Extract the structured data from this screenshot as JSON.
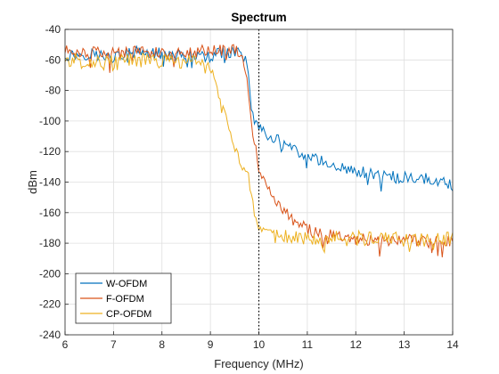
{
  "chart_data": {
    "type": "line",
    "title": "Spectrum",
    "xlabel": "Frequency (MHz)",
    "ylabel": "dBm",
    "xlim": [
      6,
      14
    ],
    "ylim": [
      -240,
      -40
    ],
    "xticks": [
      6,
      7,
      8,
      9,
      10,
      11,
      12,
      13,
      14
    ],
    "yticks": [
      -40,
      -60,
      -80,
      -100,
      -120,
      -140,
      -160,
      -180,
      -200,
      -220,
      -240
    ],
    "grid": true,
    "legend_position": "bottom-left",
    "vline": {
      "x": 10,
      "style": "dotted",
      "color": "#000000"
    },
    "series": [
      {
        "name": "W-OFDM",
        "color": "#0072BD",
        "x": [
          6.0,
          6.5,
          7.0,
          7.5,
          8.0,
          8.5,
          9.0,
          9.3,
          9.5,
          9.6,
          9.7,
          9.75,
          9.8,
          9.85,
          9.9,
          10.0,
          10.1,
          10.3,
          10.5,
          10.75,
          11.0,
          11.5,
          12.0,
          12.5,
          13.0,
          13.5,
          14.0
        ],
        "y": [
          -57,
          -56,
          -58,
          -55,
          -56,
          -57,
          -58,
          -55,
          -54,
          -56,
          -57,
          -66,
          -76,
          -92,
          -98,
          -103,
          -107,
          -111,
          -115,
          -120,
          -124,
          -128,
          -133,
          -136,
          -137,
          -138,
          -142
        ],
        "noise": 4
      },
      {
        "name": "F-OFDM",
        "color": "#D95319",
        "x": [
          6.0,
          6.5,
          7.0,
          7.5,
          8.0,
          8.5,
          9.0,
          9.3,
          9.5,
          9.6,
          9.65,
          9.7,
          9.75,
          9.8,
          9.85,
          9.9,
          9.95,
          10.0,
          10.1,
          10.25,
          10.5,
          10.75,
          11.0,
          11.25,
          11.5,
          12.0,
          12.5,
          13.0,
          13.5,
          14.0
        ],
        "y": [
          -54,
          -55,
          -56,
          -54,
          -55,
          -56,
          -53,
          -54,
          -53,
          -54,
          -58,
          -66,
          -74,
          -88,
          -100,
          -112,
          -122,
          -130,
          -138,
          -148,
          -158,
          -166,
          -171,
          -174,
          -175,
          -177,
          -178,
          -178,
          -179,
          -179
        ],
        "noise": 4
      },
      {
        "name": "CP-OFDM",
        "color": "#EDB120",
        "x": [
          6.0,
          6.5,
          7.0,
          7.5,
          8.0,
          8.5,
          8.8,
          9.0,
          9.1,
          9.2,
          9.3,
          9.4,
          9.5,
          9.6,
          9.7,
          9.8,
          9.9,
          9.95,
          10.0,
          10.25,
          10.5,
          11.0,
          11.5,
          12.0,
          12.5,
          13.0,
          13.5,
          14.0
        ],
        "y": [
          -60,
          -61,
          -62,
          -60,
          -61,
          -61,
          -62,
          -66,
          -76,
          -88,
          -95,
          -104,
          -115,
          -128,
          -133,
          -140,
          -162,
          -170,
          -174,
          -175,
          -176,
          -176,
          -177,
          -177,
          -176,
          -178,
          -178,
          -177
        ],
        "noise": 5
      }
    ]
  }
}
